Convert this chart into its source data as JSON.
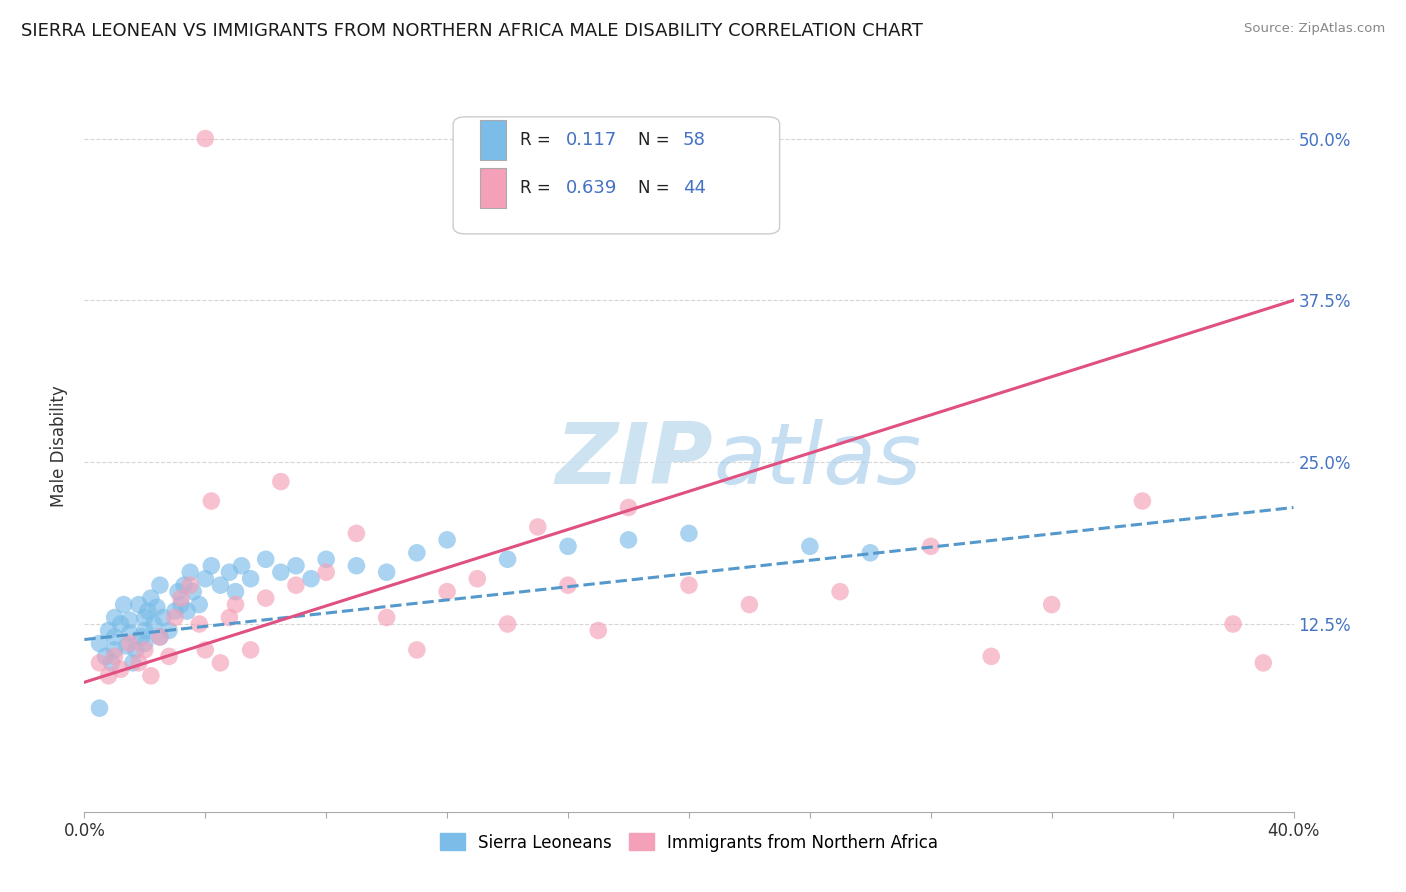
{
  "title": "SIERRA LEONEAN VS IMMIGRANTS FROM NORTHERN AFRICA MALE DISABILITY CORRELATION CHART",
  "source": "Source: ZipAtlas.com",
  "ylabel": "Male Disability",
  "x_min": 0.0,
  "x_max": 0.4,
  "y_min": -0.02,
  "y_max": 0.545,
  "y_ticks": [
    0.125,
    0.25,
    0.375,
    0.5
  ],
  "y_tick_labels": [
    "12.5%",
    "25.0%",
    "37.5%",
    "50.0%"
  ],
  "x_ticks": [
    0.0,
    0.04,
    0.08,
    0.12,
    0.16,
    0.2,
    0.24,
    0.28,
    0.32,
    0.36,
    0.4
  ],
  "series1_color": "#7bbce8",
  "series1_label": "Sierra Leoneans",
  "series1_R": 0.117,
  "series1_N": 58,
  "series2_color": "#f4a0b8",
  "series2_label": "Immigrants from Northern Africa",
  "series2_R": 0.639,
  "series2_N": 44,
  "trend1_color": "#5599cc",
  "trend2_color": "#e05080",
  "watermark_color": "#c5dff0",
  "background_color": "#ffffff",
  "grid_color": "#cccccc",
  "series1_x": [
    0.005,
    0.007,
    0.008,
    0.009,
    0.01,
    0.01,
    0.01,
    0.012,
    0.013,
    0.014,
    0.015,
    0.015,
    0.016,
    0.017,
    0.018,
    0.019,
    0.02,
    0.02,
    0.02,
    0.021,
    0.022,
    0.023,
    0.024,
    0.025,
    0.025,
    0.026,
    0.028,
    0.03,
    0.031,
    0.032,
    0.033,
    0.034,
    0.035,
    0.036,
    0.038,
    0.04,
    0.042,
    0.045,
    0.048,
    0.05,
    0.052,
    0.055,
    0.06,
    0.065,
    0.07,
    0.075,
    0.08,
    0.09,
    0.1,
    0.11,
    0.12,
    0.14,
    0.16,
    0.18,
    0.2,
    0.24,
    0.26,
    0.005
  ],
  "series1_y": [
    0.11,
    0.1,
    0.12,
    0.095,
    0.13,
    0.115,
    0.105,
    0.125,
    0.14,
    0.108,
    0.118,
    0.128,
    0.095,
    0.105,
    0.14,
    0.115,
    0.12,
    0.13,
    0.11,
    0.135,
    0.145,
    0.125,
    0.138,
    0.115,
    0.155,
    0.13,
    0.12,
    0.135,
    0.15,
    0.14,
    0.155,
    0.135,
    0.165,
    0.15,
    0.14,
    0.16,
    0.17,
    0.155,
    0.165,
    0.15,
    0.17,
    0.16,
    0.175,
    0.165,
    0.17,
    0.16,
    0.175,
    0.17,
    0.165,
    0.18,
    0.19,
    0.175,
    0.185,
    0.19,
    0.195,
    0.185,
    0.18,
    0.06
  ],
  "series2_x": [
    0.005,
    0.008,
    0.01,
    0.012,
    0.015,
    0.018,
    0.02,
    0.022,
    0.025,
    0.028,
    0.03,
    0.032,
    0.035,
    0.038,
    0.04,
    0.042,
    0.045,
    0.048,
    0.05,
    0.055,
    0.06,
    0.065,
    0.07,
    0.08,
    0.09,
    0.1,
    0.11,
    0.12,
    0.13,
    0.14,
    0.15,
    0.16,
    0.17,
    0.18,
    0.2,
    0.22,
    0.25,
    0.28,
    0.3,
    0.32,
    0.35,
    0.38,
    0.39,
    0.04
  ],
  "series2_y": [
    0.095,
    0.085,
    0.1,
    0.09,
    0.11,
    0.095,
    0.105,
    0.085,
    0.115,
    0.1,
    0.13,
    0.145,
    0.155,
    0.125,
    0.105,
    0.22,
    0.095,
    0.13,
    0.14,
    0.105,
    0.145,
    0.235,
    0.155,
    0.165,
    0.195,
    0.13,
    0.105,
    0.15,
    0.16,
    0.125,
    0.2,
    0.155,
    0.12,
    0.215,
    0.155,
    0.14,
    0.15,
    0.185,
    0.1,
    0.14,
    0.22,
    0.125,
    0.095,
    0.5
  ]
}
